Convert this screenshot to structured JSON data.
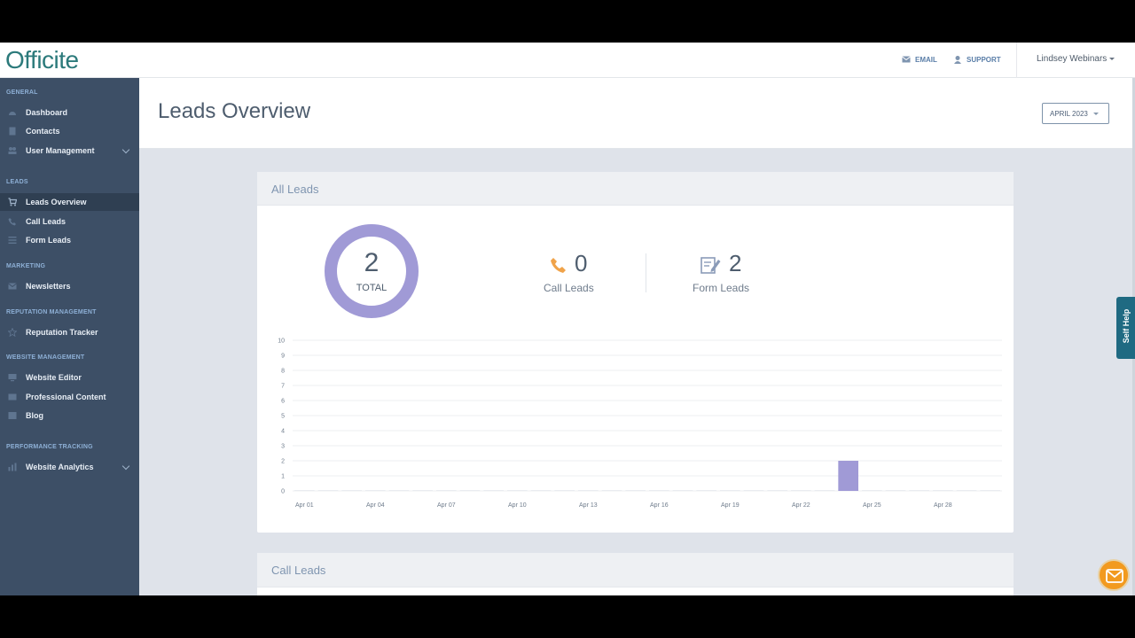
{
  "app": {
    "logo": "Officite"
  },
  "topbar": {
    "email_label": "EMAIL",
    "support_label": "SUPPORT",
    "user_name": "Lindsey Webinars"
  },
  "sidebar": {
    "sections": [
      {
        "title": "GENERAL",
        "items": [
          {
            "label": "Dashboard",
            "icon": "dashboard-icon"
          },
          {
            "label": "Contacts",
            "icon": "contacts-icon"
          },
          {
            "label": "User Management",
            "icon": "users-icon"
          }
        ]
      },
      {
        "title": "LEADS",
        "items": [
          {
            "label": "Leads Overview",
            "icon": "cart-icon"
          },
          {
            "label": "Call Leads",
            "icon": "phone-icon"
          },
          {
            "label": "Form Leads",
            "icon": "list-icon"
          }
        ]
      },
      {
        "title": "MARKETING",
        "items": [
          {
            "label": "Newsletters",
            "icon": "mail-icon"
          }
        ]
      },
      {
        "title": "REPUTATION MANAGEMENT",
        "items": [
          {
            "label": "Reputation Tracker",
            "icon": "star-icon"
          }
        ]
      },
      {
        "title": "WEBSITE MANAGEMENT",
        "items": [
          {
            "label": "Website Editor",
            "icon": "monitor-icon"
          },
          {
            "label": "Professional Content",
            "icon": "content-icon"
          },
          {
            "label": "Blog",
            "icon": "blog-icon"
          }
        ]
      },
      {
        "title": "PERFORMANCE TRACKING",
        "items": [
          {
            "label": "Website Analytics",
            "icon": "analytics-icon"
          }
        ]
      }
    ]
  },
  "page": {
    "title": "Leads Overview",
    "month": "APRIL 2023"
  },
  "all_leads": {
    "title": "All Leads",
    "total": "2",
    "total_label": "TOTAL",
    "call_count": "0",
    "call_label": "Call Leads",
    "form_count": "2",
    "form_label": "Form Leads"
  },
  "call_leads_card": {
    "title": "Call Leads"
  },
  "chart_data": {
    "type": "bar",
    "x_tick_labels": [
      "Apr 01",
      "Apr 04",
      "Apr 07",
      "Apr 10",
      "Apr 13",
      "Apr 16",
      "Apr 19",
      "Apr 22",
      "Apr 25",
      "Apr 28"
    ],
    "y_ticks": [
      0,
      1,
      2,
      3,
      4,
      5,
      6,
      7,
      8,
      9,
      10
    ],
    "ylim": [
      0,
      10
    ],
    "days": 30,
    "values": [
      0,
      0,
      0,
      0,
      0,
      0,
      0,
      0,
      0,
      0,
      0,
      0,
      0,
      0,
      0,
      0,
      0,
      0,
      0,
      0,
      0,
      0,
      0,
      2,
      0,
      0,
      0,
      0,
      0,
      0
    ],
    "bar_color": "#a09ad6",
    "grid": true
  },
  "colors": {
    "accent": "#a09ad6",
    "sidebar": "#3d4f66",
    "self_help": "#1f6a82",
    "chat": "#f29a1f"
  },
  "self_help": {
    "label": "Self Help"
  }
}
